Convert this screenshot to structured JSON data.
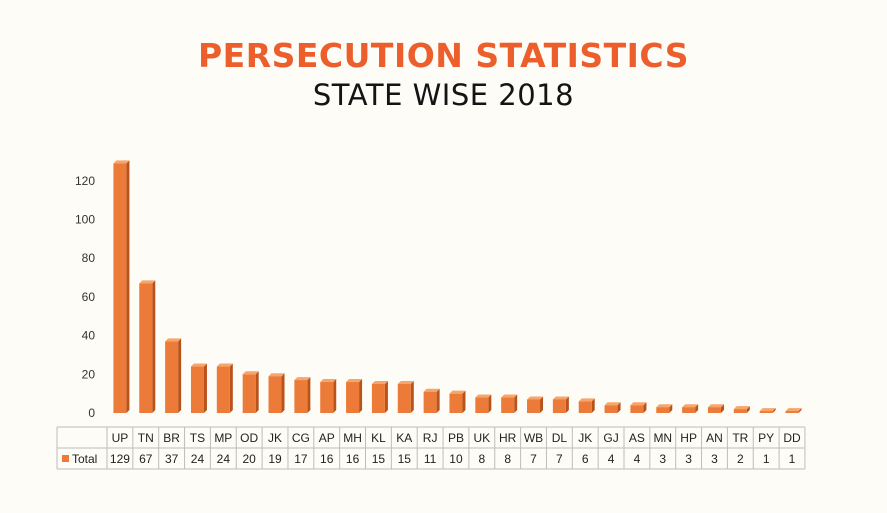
{
  "chart_data": {
    "type": "bar",
    "title": "PERSECUTION STATISTICS",
    "subtitle": "STATE WISE 2018",
    "categories": [
      "UP",
      "TN",
      "BR",
      "TS",
      "MP",
      "OD",
      "JK",
      "CG",
      "AP",
      "MH",
      "KL",
      "KA",
      "RJ",
      "PB",
      "UK",
      "HR",
      "WB",
      "DL",
      "JK",
      "GJ",
      "AS",
      "MN",
      "HP",
      "AN",
      "TR",
      "PY",
      "DD"
    ],
    "series": [
      {
        "name": "Total",
        "values": [
          129,
          67,
          37,
          24,
          24,
          20,
          19,
          17,
          16,
          16,
          15,
          15,
          11,
          10,
          8,
          8,
          7,
          7,
          6,
          4,
          4,
          3,
          3,
          3,
          2,
          1,
          1
        ]
      }
    ],
    "yticks": [
      0,
      20,
      40,
      60,
      80,
      100,
      120
    ],
    "ylim": [
      0,
      130
    ],
    "grid": false,
    "legend": "data-table",
    "bar_color": "#ec7a38",
    "bar_side_color": "#b9531c",
    "bar_top_color": "#f6a66c"
  }
}
